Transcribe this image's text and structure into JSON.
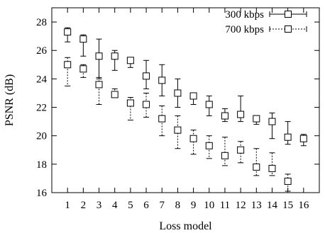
{
  "chart_data": {
    "type": "scatter",
    "title": "",
    "xlabel": "Loss model",
    "ylabel": "PSNR (dB)",
    "xlim": [
      0,
      17
    ],
    "ylim": [
      16,
      29
    ],
    "x_ticks": [
      "1",
      "2",
      "3",
      "4",
      "5",
      "6",
      "7",
      "8",
      "9",
      "10",
      "11",
      "12",
      "13",
      "14",
      "15",
      "16"
    ],
    "y_ticks": [
      "16",
      "18",
      "20",
      "22",
      "24",
      "26",
      "28"
    ],
    "legend_position": "top-right",
    "series": [
      {
        "name": "300 kbps",
        "line_style": "solid",
        "marker": "square",
        "x": [
          1,
          2,
          3,
          4,
          5,
          6,
          7,
          8,
          9,
          10,
          11,
          12,
          13,
          14,
          15,
          16
        ],
        "y": [
          27.3,
          26.8,
          25.6,
          25.6,
          25.3,
          24.2,
          23.9,
          23.0,
          22.8,
          22.2,
          21.4,
          21.5,
          21.2,
          21.0,
          19.9,
          19.8
        ],
        "y_high": [
          27.6,
          27.1,
          26.8,
          26.0,
          25.5,
          25.3,
          25.0,
          24.0,
          23.0,
          22.8,
          21.9,
          22.8,
          21.4,
          21.6,
          21.0,
          20.1
        ],
        "y_low": [
          26.6,
          25.6,
          24.0,
          24.6,
          24.8,
          23.3,
          22.8,
          22.0,
          22.2,
          21.4,
          21.0,
          21.0,
          20.8,
          19.8,
          19.4,
          19.3
        ]
      },
      {
        "name": "700 kbps",
        "line_style": "dashed",
        "marker": "square",
        "x": [
          1,
          2,
          3,
          4,
          5,
          6,
          7,
          8,
          9,
          10,
          11,
          12,
          13,
          14,
          15
        ],
        "y": [
          25.0,
          24.7,
          23.6,
          22.9,
          22.3,
          22.2,
          21.2,
          20.4,
          19.8,
          19.3,
          18.6,
          19.0,
          17.8,
          17.7,
          16.8
        ],
        "y_high": [
          25.5,
          25.0,
          24.1,
          23.3,
          22.7,
          23.0,
          22.1,
          21.4,
          20.4,
          20.0,
          19.9,
          19.6,
          19.1,
          18.8,
          17.3
        ],
        "y_low": [
          23.5,
          24.1,
          22.2,
          22.8,
          21.1,
          21.3,
          20.0,
          19.1,
          18.7,
          18.4,
          17.9,
          18.1,
          17.2,
          17.2,
          16.1
        ]
      }
    ]
  }
}
